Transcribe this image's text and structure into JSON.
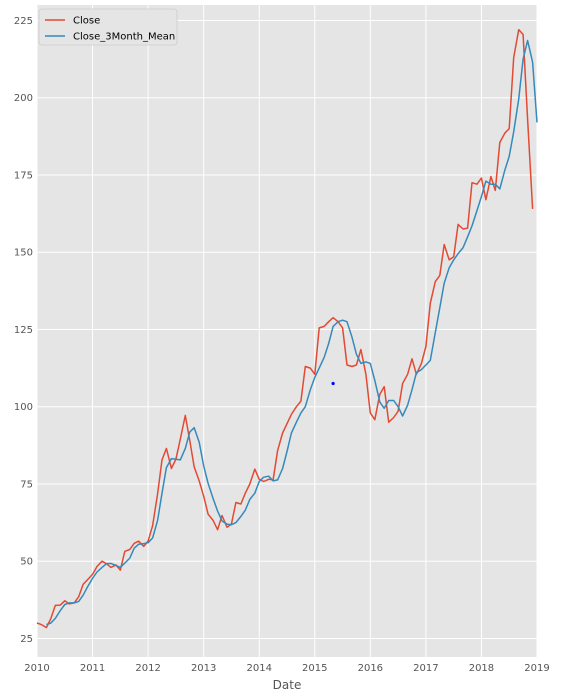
{
  "chart_data": {
    "type": "line",
    "title": "",
    "xlabel": "Date",
    "ylabel": "",
    "xlim": [
      2010.0,
      2019.0
    ],
    "ylim": [
      19,
      230
    ],
    "x_ticks": [
      {
        "value": 2010,
        "label": "2010"
      },
      {
        "value": 2011,
        "label": "2011"
      },
      {
        "value": 2012,
        "label": "2012"
      },
      {
        "value": 2013,
        "label": "2013"
      },
      {
        "value": 2014,
        "label": "2014"
      },
      {
        "value": 2015,
        "label": "2015"
      },
      {
        "value": 2016,
        "label": "2016"
      },
      {
        "value": 2017,
        "label": "2017"
      },
      {
        "value": 2018,
        "label": "2018"
      },
      {
        "value": 2019,
        "label": "2019"
      }
    ],
    "y_ticks": [
      {
        "value": 25,
        "label": "25"
      },
      {
        "value": 50,
        "label": "50"
      },
      {
        "value": 75,
        "label": "75"
      },
      {
        "value": 100,
        "label": "100"
      },
      {
        "value": 125,
        "label": "125"
      },
      {
        "value": 150,
        "label": "150"
      },
      {
        "value": 175,
        "label": "175"
      },
      {
        "value": 200,
        "label": "200"
      },
      {
        "value": 225,
        "label": "225"
      }
    ],
    "grid": true,
    "legend_position": "top-left",
    "background_color": "#e5e5e5",
    "series": [
      {
        "name": "Close",
        "color": "#e24a33",
        "points": [
          [
            2010.0,
            30
          ],
          [
            2010.08,
            29.5
          ],
          [
            2010.17,
            28.5
          ],
          [
            2010.25,
            31.5
          ],
          [
            2010.33,
            35.7
          ],
          [
            2010.42,
            35.8
          ],
          [
            2010.5,
            37.2
          ],
          [
            2010.58,
            36.2
          ],
          [
            2010.67,
            36.5
          ],
          [
            2010.75,
            38.5
          ],
          [
            2010.83,
            42.5
          ],
          [
            2010.92,
            44.2
          ],
          [
            2011.0,
            45.8
          ],
          [
            2011.08,
            48.3
          ],
          [
            2011.17,
            50.0
          ],
          [
            2011.25,
            49.2
          ],
          [
            2011.33,
            48.0
          ],
          [
            2011.42,
            48.8
          ],
          [
            2011.5,
            47.1
          ],
          [
            2011.58,
            53.2
          ],
          [
            2011.67,
            53.8
          ],
          [
            2011.75,
            55.8
          ],
          [
            2011.83,
            56.5
          ],
          [
            2011.92,
            54.8
          ],
          [
            2012.0,
            56.5
          ],
          [
            2012.08,
            61.5
          ],
          [
            2012.17,
            71.8
          ],
          [
            2012.25,
            82.8
          ],
          [
            2012.33,
            86.5
          ],
          [
            2012.42,
            80.0
          ],
          [
            2012.5,
            83.0
          ],
          [
            2012.58,
            89.5
          ],
          [
            2012.67,
            97.2
          ],
          [
            2012.75,
            89.0
          ],
          [
            2012.83,
            80.5
          ],
          [
            2012.92,
            76.0
          ],
          [
            2013.0,
            71.0
          ],
          [
            2013.08,
            65.2
          ],
          [
            2013.17,
            63.2
          ],
          [
            2013.25,
            60.2
          ],
          [
            2013.33,
            64.8
          ],
          [
            2013.42,
            61.0
          ],
          [
            2013.5,
            62.0
          ],
          [
            2013.58,
            69.0
          ],
          [
            2013.67,
            68.5
          ],
          [
            2013.75,
            72.0
          ],
          [
            2013.83,
            75.0
          ],
          [
            2013.92,
            79.8
          ],
          [
            2014.0,
            76.5
          ],
          [
            2014.08,
            75.8
          ],
          [
            2014.17,
            76.5
          ],
          [
            2014.25,
            76.3
          ],
          [
            2014.33,
            85.8
          ],
          [
            2014.42,
            91.5
          ],
          [
            2014.5,
            94.5
          ],
          [
            2014.58,
            97.5
          ],
          [
            2014.67,
            100.0
          ],
          [
            2014.75,
            101.8
          ],
          [
            2014.83,
            113.0
          ],
          [
            2014.92,
            112.5
          ],
          [
            2015.0,
            110.5
          ],
          [
            2015.08,
            125.5
          ],
          [
            2015.17,
            126.0
          ],
          [
            2015.25,
            127.5
          ],
          [
            2015.33,
            128.8
          ],
          [
            2015.42,
            127.5
          ],
          [
            2015.5,
            125.5
          ],
          [
            2015.58,
            113.5
          ],
          [
            2015.67,
            113.0
          ],
          [
            2015.75,
            113.5
          ],
          [
            2015.83,
            118.5
          ],
          [
            2015.92,
            110.5
          ],
          [
            2016.0,
            98.0
          ],
          [
            2016.08,
            95.8
          ],
          [
            2016.17,
            104.0
          ],
          [
            2016.25,
            106.5
          ],
          [
            2016.33,
            95.0
          ],
          [
            2016.42,
            96.5
          ],
          [
            2016.5,
            98.5
          ],
          [
            2016.58,
            107.5
          ],
          [
            2016.67,
            110.5
          ],
          [
            2016.75,
            115.5
          ],
          [
            2016.83,
            110.5
          ],
          [
            2016.92,
            114.0
          ],
          [
            2017.0,
            119.5
          ],
          [
            2017.08,
            133.5
          ],
          [
            2017.17,
            140.5
          ],
          [
            2017.25,
            142.5
          ],
          [
            2017.33,
            152.5
          ],
          [
            2017.42,
            147.5
          ],
          [
            2017.5,
            148.5
          ],
          [
            2017.58,
            159.0
          ],
          [
            2017.67,
            157.5
          ],
          [
            2017.75,
            157.8
          ],
          [
            2017.83,
            172.5
          ],
          [
            2017.92,
            172.0
          ],
          [
            2018.0,
            174.0
          ],
          [
            2018.08,
            167.0
          ],
          [
            2018.17,
            174.5
          ],
          [
            2018.25,
            170.0
          ],
          [
            2018.33,
            185.5
          ],
          [
            2018.42,
            188.5
          ],
          [
            2018.5,
            190.0
          ],
          [
            2018.58,
            213.0
          ],
          [
            2018.67,
            222.0
          ],
          [
            2018.75,
            220.5
          ],
          [
            2018.83,
            193.0
          ],
          [
            2018.92,
            164.0
          ]
        ]
      },
      {
        "name": "Close_3Month_Mean",
        "color": "#348abd",
        "points": [
          [
            2010.17,
            29.5
          ],
          [
            2010.25,
            30.0
          ],
          [
            2010.33,
            31.5
          ],
          [
            2010.42,
            34.0
          ],
          [
            2010.5,
            36.0
          ],
          [
            2010.58,
            36.5
          ],
          [
            2010.67,
            36.5
          ],
          [
            2010.75,
            37.0
          ],
          [
            2010.83,
            39.0
          ],
          [
            2010.92,
            42.0
          ],
          [
            2011.0,
            44.5
          ],
          [
            2011.08,
            46.5
          ],
          [
            2011.17,
            48.0
          ],
          [
            2011.25,
            49.2
          ],
          [
            2011.33,
            49.3
          ],
          [
            2011.42,
            48.6
          ],
          [
            2011.5,
            48.0
          ],
          [
            2011.58,
            49.4
          ],
          [
            2011.67,
            51.0
          ],
          [
            2011.75,
            54.2
          ],
          [
            2011.83,
            55.5
          ],
          [
            2011.92,
            55.7
          ],
          [
            2012.0,
            56.0
          ],
          [
            2012.08,
            57.5
          ],
          [
            2012.17,
            63.2
          ],
          [
            2012.25,
            72.0
          ],
          [
            2012.33,
            80.3
          ],
          [
            2012.42,
            83.2
          ],
          [
            2012.5,
            83.0
          ],
          [
            2012.58,
            82.8
          ],
          [
            2012.67,
            86.5
          ],
          [
            2012.75,
            91.8
          ],
          [
            2012.83,
            93.2
          ],
          [
            2012.92,
            88.5
          ],
          [
            2013.0,
            80.8
          ],
          [
            2013.08,
            75.2
          ],
          [
            2013.17,
            70.3
          ],
          [
            2013.25,
            66.2
          ],
          [
            2013.33,
            63.0
          ],
          [
            2013.42,
            62.0
          ],
          [
            2013.5,
            61.8
          ],
          [
            2013.58,
            62.5
          ],
          [
            2013.67,
            64.5
          ],
          [
            2013.75,
            66.5
          ],
          [
            2013.83,
            70.0
          ],
          [
            2013.92,
            72.0
          ],
          [
            2014.0,
            75.8
          ],
          [
            2014.08,
            77.2
          ],
          [
            2014.17,
            77.5
          ],
          [
            2014.25,
            76.0
          ],
          [
            2014.33,
            76.3
          ],
          [
            2014.42,
            80.0
          ],
          [
            2014.5,
            85.5
          ],
          [
            2014.58,
            91.5
          ],
          [
            2014.67,
            95.0
          ],
          [
            2014.75,
            98.0
          ],
          [
            2014.83,
            100.0
          ],
          [
            2014.92,
            105.5
          ],
          [
            2015.0,
            109.5
          ],
          [
            2015.08,
            112.5
          ],
          [
            2015.17,
            116.0
          ],
          [
            2015.25,
            120.5
          ],
          [
            2015.33,
            126.0
          ],
          [
            2015.42,
            127.5
          ],
          [
            2015.5,
            128.0
          ],
          [
            2015.58,
            127.5
          ],
          [
            2015.67,
            122.5
          ],
          [
            2015.75,
            117.0
          ],
          [
            2015.83,
            114.0
          ],
          [
            2015.92,
            114.5
          ],
          [
            2016.0,
            114.0
          ],
          [
            2016.08,
            108.5
          ],
          [
            2016.17,
            101.5
          ],
          [
            2016.25,
            99.5
          ],
          [
            2016.33,
            102.0
          ],
          [
            2016.42,
            102.0
          ],
          [
            2016.5,
            100.0
          ],
          [
            2016.58,
            97.0
          ],
          [
            2016.67,
            100.5
          ],
          [
            2016.75,
            105.5
          ],
          [
            2016.83,
            111.0
          ],
          [
            2016.92,
            112.0
          ],
          [
            2017.0,
            113.5
          ],
          [
            2017.08,
            115.0
          ],
          [
            2017.17,
            124.0
          ],
          [
            2017.25,
            132.0
          ],
          [
            2017.33,
            140.0
          ],
          [
            2017.42,
            145.0
          ],
          [
            2017.5,
            147.5
          ],
          [
            2017.58,
            149.5
          ],
          [
            2017.67,
            151.5
          ],
          [
            2017.75,
            155.0
          ],
          [
            2017.83,
            158.5
          ],
          [
            2017.92,
            163.5
          ],
          [
            2018.0,
            168.0
          ],
          [
            2018.08,
            173.0
          ],
          [
            2018.17,
            172.0
          ],
          [
            2018.25,
            172.0
          ],
          [
            2018.33,
            170.5
          ],
          [
            2018.42,
            176.5
          ],
          [
            2018.5,
            181.0
          ],
          [
            2018.58,
            189.0
          ],
          [
            2018.67,
            199.5
          ],
          [
            2018.75,
            212.5
          ],
          [
            2018.83,
            218.5
          ],
          [
            2018.92,
            211.5
          ],
          [
            2019.0,
            192.0
          ]
        ]
      }
    ],
    "annotations": [
      {
        "type": "point",
        "x": 2015.33,
        "y": 107.5,
        "color": "#0000ff"
      }
    ]
  }
}
